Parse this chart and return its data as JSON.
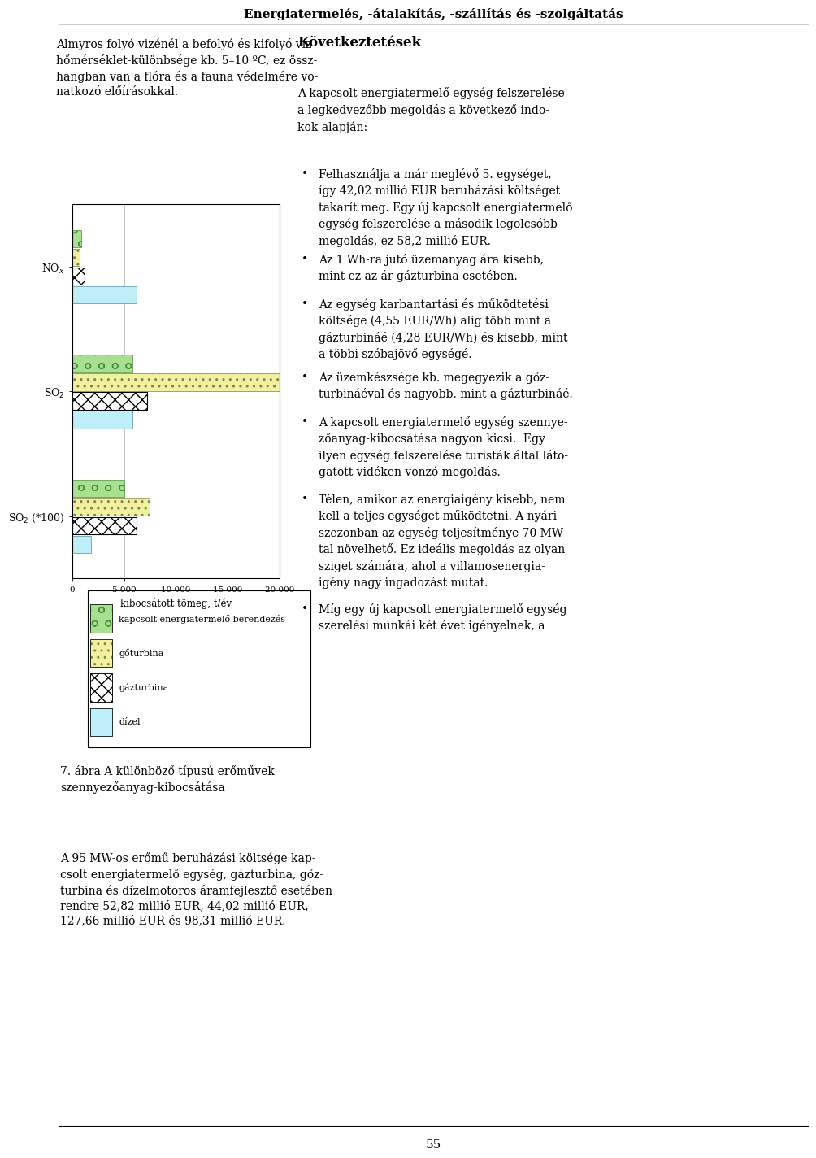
{
  "title": "Energiatermelés, -átalakítás, -szállítás és -szolgáltatás",
  "categories": [
    "NO$_x$",
    "SO$_2$",
    "SO$_2$ (*100)"
  ],
  "series_labels": [
    "kapcsolt energiatermelő berendezés",
    "gőturbina",
    "gázturbina",
    "dízel"
  ],
  "values_nox": [
    900,
    700,
    1200,
    6200
  ],
  "values_so2": [
    5800,
    20000,
    7200,
    5800
  ],
  "values_so2100": [
    5000,
    7500,
    6200,
    1800
  ],
  "xlabel": "kibocsátott tömeg, t/év",
  "xlim": [
    0,
    20000
  ],
  "xticks": [
    0,
    5000,
    10000,
    15000,
    20000
  ],
  "xtick_labels": [
    "0",
    "5 000",
    "10 000",
    "15 000",
    "20 000"
  ],
  "background_color": "#ffffff",
  "figure_bg": "#ffffff",
  "left_col_text_1": "Almyros folyó vizénél a befolyó és kifolyó víz\nhőmérséklet-különbsége kb. 5–10 ºC, ez össz-\nhangban van a flóra és a fauna védelmére vo-\nnatkozó előírásokkal.",
  "caption_line1": "7. ábra A különböző típusú erőművek",
  "caption_line2": "szennyezőanyag-kibocsátása",
  "left_col_text_2": "A 95 MW-os erőmű beruházási költsége kap-\ncsolt energiatermelő egység, gázturbina, gőz-\nturbina és dízelmotoros áramfejlesztő esetében\nrendre 52,82 millió EUR, 44,02 millió EUR,\n127,66 millió EUR és 98,31 millió EUR.",
  "right_heading": "Következtetések",
  "right_para1": "A kapcsolt energiatermelő egység felszerelése\na legkedvezőbb megoldás a következő indo-\nkok alapján:",
  "bullet1": "Felhasználja a már meglévő 5. egységet,\nígy 42,02 millió EUR beruházási költséget\ntakarít meg. Egy új kapcsolt energiatermelő\negység felszerelése a második legolcsóbb\nmegoldás, ez 58,2 millió EUR.",
  "bullet2": "Az 1 Wh-ra jutó üzemanyag ára kisebb,\nmint ez az ár gázturbina esetében.",
  "bullet3": "Az egység karbantartási és működtetési\nköltsége (4,55 EUR/Wh) alig több mint a\ngázturbináé (4,28 EUR/Wh) és kisebb, mint\na többi szóbajövő egységé.",
  "bullet4": "Az üzemkészsége kb. megegyezik a gőz-\nturbináéval és nagyobb, mint a gázturbináé.",
  "bullet5": "A kapcsolt energiatermelő egység szennye-\nzőanyag-kibocsátása nagyon kicsi.  Egy\nilyen egység felszerelése turisták által láto-\ngatott vidéken vonzó megoldás.",
  "bullet6": "Télen, amikor az energiaigény kisebb, nem\nkell a teljes egységet működtetni. A nyári\nszezonban az egység teljesítménye 70 MW-\ntal növelhető. Ez ideális megoldás az olyan\nsziget számára, ahol a villamosenergia-\nigény nagy ingadozást mutat.",
  "bullet7": "Míg egy új kapcsolt energiatermelő egység\nszerelési munkái két évet igényelnek, a",
  "page_num": "55"
}
